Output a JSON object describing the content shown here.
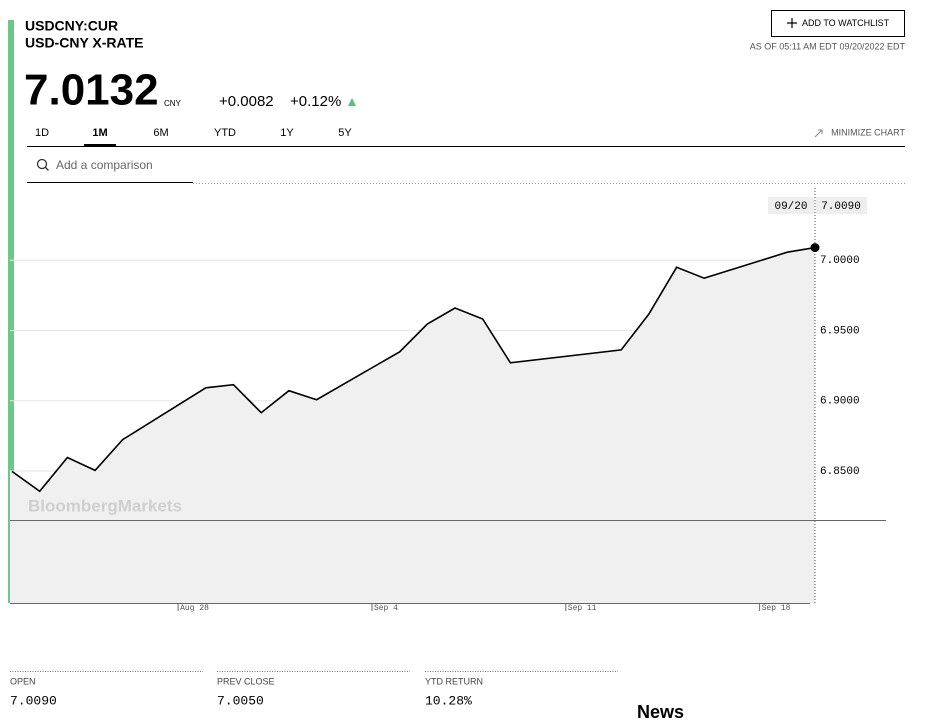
{
  "header": {
    "ticker": "USDCNY:CUR",
    "name": "USD-CNY X-RATE",
    "watchlist_button": "ADD TO WATCHLIST",
    "as_of": "AS OF 05:11 AM EDT 09/20/2022 EDT",
    "price": "7.0132",
    "currency": "CNY",
    "change": "+0.0082",
    "change_pct": "+0.12%"
  },
  "tabs": [
    "1D",
    "1M",
    "6M",
    "YTD",
    "1Y",
    "5Y"
  ],
  "active_tab_index": 1,
  "minimize_chart": "MINIMIZE CHART",
  "search_placeholder": "Add a comparison",
  "chart_data": {
    "type": "area",
    "watermark": "BloombergMarkets",
    "crosshair_date": "09/20",
    "crosshair_value": "7.0090",
    "x": [
      "Aug 22",
      "Aug 23",
      "Aug 24",
      "Aug 25",
      "Aug 26",
      "Aug 29",
      "Aug 30",
      "Aug 31",
      "Sep 1",
      "Sep 2",
      "Sep 5",
      "Sep 6",
      "Sep 7",
      "Sep 8",
      "Sep 9",
      "Sep 13",
      "Sep 14",
      "Sep 15",
      "Sep 16",
      "Sep 19",
      "Sep 20"
    ],
    "series": [
      {
        "color": "#000000",
        "fill": "#f0f0f0",
        "values": [
          6.8497,
          6.8355,
          6.8596,
          6.8504,
          6.8724,
          6.9092,
          6.9114,
          6.8915,
          6.9071,
          6.9007,
          6.9348,
          6.9546,
          6.966,
          6.9582,
          6.927,
          6.9362,
          6.9617,
          6.995,
          6.9872,
          7.0057,
          7.009
        ]
      }
    ],
    "xlim": [
      "Aug 22",
      "Sep 20"
    ],
    "xticks": [
      "Aug 28",
      "Sep 4",
      "Sep 11",
      "Sep 18"
    ],
    "ylim": [
      6.756,
      7.05
    ],
    "yticks": [
      {
        "value": 6.85,
        "label": "6.8500"
      },
      {
        "value": 6.9,
        "label": "6.9000"
      },
      {
        "value": 6.95,
        "label": "6.9500"
      },
      {
        "value": 7.0,
        "label": "7.0000"
      }
    ],
    "grid": true
  },
  "stats": [
    {
      "label": "OPEN",
      "value": "7.0090"
    },
    {
      "label": "PREV CLOSE",
      "value": "7.0050"
    },
    {
      "label": "YTD RETURN",
      "value": "10.28%"
    }
  ],
  "news_heading": "News"
}
